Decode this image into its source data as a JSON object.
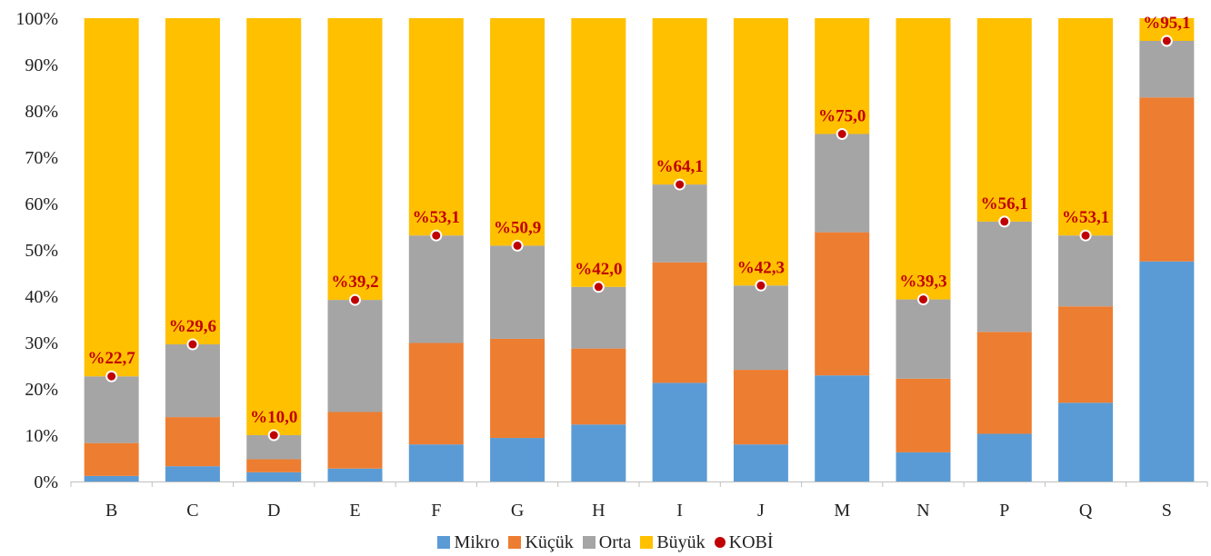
{
  "chart_data": {
    "type": "bar",
    "stacked": true,
    "categories": [
      "B",
      "C",
      "D",
      "E",
      "F",
      "G",
      "H",
      "I",
      "J",
      "M",
      "N",
      "P",
      "Q",
      "S"
    ],
    "y_ticks": [
      "0%",
      "10%",
      "20%",
      "30%",
      "40%",
      "50%",
      "60%",
      "70%",
      "80%",
      "90%",
      "100%"
    ],
    "ylim": [
      0,
      100
    ],
    "series": [
      {
        "name": "Mikro",
        "color": "#5b9bd5",
        "values": [
          1.2,
          3.3,
          2.0,
          2.8,
          8.0,
          9.4,
          12.3,
          21.3,
          8.0,
          22.9,
          6.3,
          10.3,
          17.0,
          47.5
        ]
      },
      {
        "name": "Küçük",
        "color": "#ed7d31",
        "values": [
          7.1,
          10.6,
          2.8,
          12.2,
          21.9,
          21.4,
          16.4,
          26.0,
          16.1,
          30.9,
          15.9,
          22.0,
          20.8,
          35.4
        ]
      },
      {
        "name": "Orta",
        "color": "#a5a5a5",
        "values": [
          14.4,
          15.7,
          5.2,
          24.2,
          23.2,
          20.1,
          13.3,
          16.8,
          18.2,
          21.2,
          17.1,
          23.8,
          15.3,
          12.2
        ]
      },
      {
        "name": "Büyük",
        "color": "#ffc000",
        "values": [
          77.3,
          70.4,
          90.0,
          60.8,
          46.9,
          49.1,
          58.0,
          35.9,
          57.7,
          25.0,
          60.7,
          43.9,
          46.9,
          4.9
        ]
      }
    ],
    "kobi": {
      "name": "KOBİ",
      "color": "#c00000",
      "values": [
        22.7,
        29.6,
        10.0,
        39.2,
        53.1,
        50.9,
        42.0,
        64.1,
        42.3,
        75.0,
        39.3,
        56.1,
        53.1,
        95.1
      ],
      "labels": [
        "%22,7",
        "%29,6",
        "%10,0",
        "%39,2",
        "%53,1",
        "%50,9",
        "%42,0",
        "%64,1",
        "%42,3",
        "%75,0",
        "%39,3",
        "%56,1",
        "%53,1",
        "%95,1"
      ]
    },
    "legend_position": "bottom",
    "grid": false
  },
  "legend": {
    "mikro": "Mikro",
    "kucuk": "Küçük",
    "orta": "Orta",
    "buyuk": "Büyük",
    "kobi": "KOBİ"
  }
}
